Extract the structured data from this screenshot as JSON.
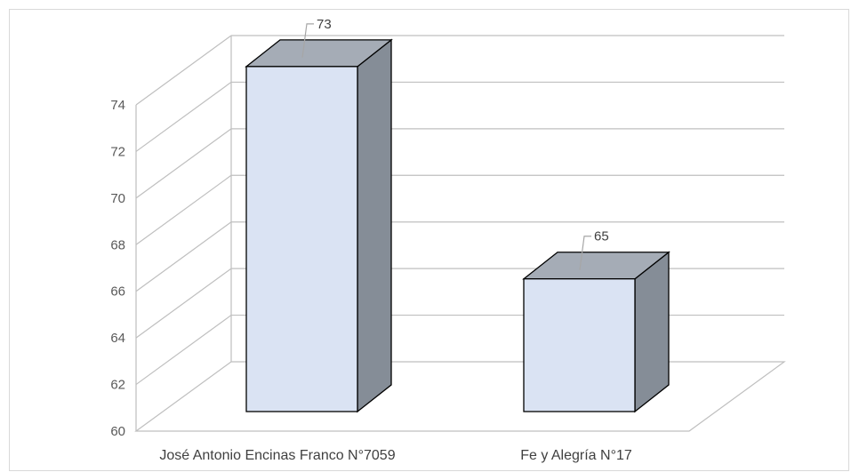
{
  "chart_data": {
    "type": "bar",
    "title": "",
    "xlabel": "",
    "ylabel": "",
    "categories": [
      "José Antonio Encinas Franco N°7059",
      "Fe y Alegría N°17"
    ],
    "values": [
      73,
      65
    ],
    "data_labels": [
      "73",
      "65"
    ],
    "ylim": [
      60,
      74
    ],
    "yticks": [
      60,
      62,
      64,
      66,
      68,
      70,
      72,
      74
    ],
    "ytick_labels": [
      "60",
      "62",
      "64",
      "66",
      "68",
      "70",
      "72",
      "74"
    ],
    "grid": true,
    "legend": "none",
    "style": "3d-column",
    "colors": {
      "bar_front": "#dae3f3",
      "bar_top": "#a5acb6",
      "bar_side": "#858d97",
      "bar_outline": "#000000",
      "grid": "#bfbfbf",
      "text": "#595959"
    }
  }
}
